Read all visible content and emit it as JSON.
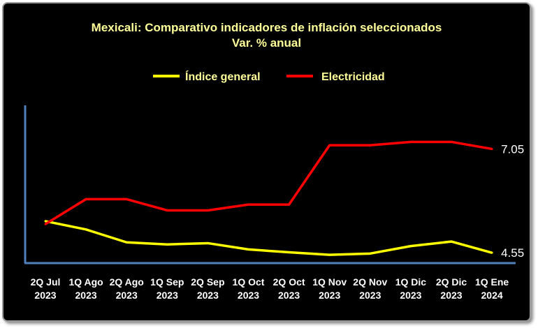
{
  "chart_data": {
    "type": "line",
    "title": "Mexicali: Comparativo indicadores de inflación seleccionados",
    "subtitle": "Var. % anual",
    "categories": [
      [
        "2Q Jul",
        "2023"
      ],
      [
        "1Q Ago",
        "2023"
      ],
      [
        "2Q Ago",
        "2023"
      ],
      [
        "1Q Sep",
        "2023"
      ],
      [
        "2Q Sep",
        "2023"
      ],
      [
        "1Q Oct",
        "2023"
      ],
      [
        "2Q Oct",
        "2023"
      ],
      [
        "1Q Nov",
        "2023"
      ],
      [
        "2Q Nov",
        "2023"
      ],
      [
        "1Q Dic",
        "2023"
      ],
      [
        "2Q Dic",
        "2023"
      ],
      [
        "1Q Ene",
        "2024"
      ]
    ],
    "series": [
      {
        "name": "Índice general",
        "color": "#ffff00",
        "values": [
          5.31,
          5.11,
          4.8,
          4.75,
          4.78,
          4.63,
          4.56,
          4.5,
          4.53,
          4.71,
          4.82,
          4.55
        ],
        "end_label": "4.55"
      },
      {
        "name": "Electricidad",
        "color": "#ff0000",
        "values": [
          5.24,
          5.84,
          5.84,
          5.57,
          5.57,
          5.71,
          5.71,
          7.14,
          7.14,
          7.22,
          7.22,
          7.05
        ],
        "end_label": "7.05"
      }
    ],
    "ylim": [
      4.3,
      8.1
    ],
    "legend": "top-center",
    "grid": false,
    "axis_color": "#4f81bd",
    "label_color": "#ffffff"
  }
}
